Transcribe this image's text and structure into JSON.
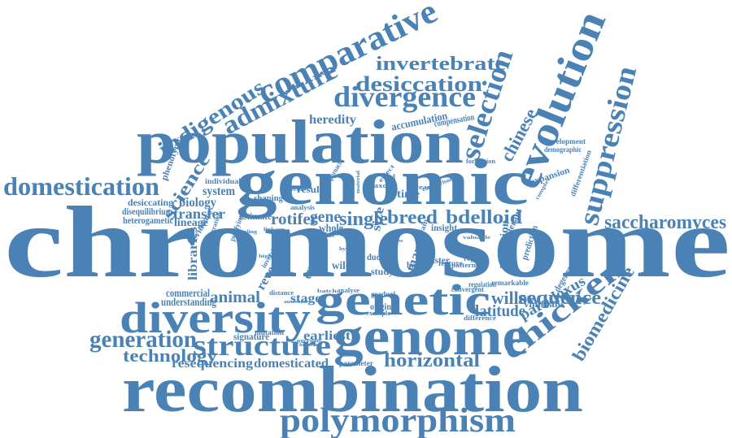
{
  "style": {
    "word_color": "#4a82b6",
    "background": "#ffffff"
  },
  "words": [
    "chromosome",
    "recombination",
    "genomic",
    "population",
    "genome",
    "genetic",
    "evolution",
    "diversity",
    "comparative",
    "polymorphism",
    "chicken",
    "suppression",
    "selection",
    "structure",
    "divergence",
    "admixture",
    "domestication",
    "generation",
    "indigenous",
    "desiccation",
    "invertebrate",
    "horizontal",
    "saccharomyces",
    "technology",
    "bdelloid",
    "biomedicine",
    "sequence",
    "chinese",
    "breed",
    "single",
    "science",
    "willow",
    "latitude",
    "paradoxus",
    "animal",
    "rotifer",
    "resequencing",
    "domesticated",
    "earliest",
    "heredity",
    "transfer",
    "biology",
    "system",
    "lineage",
    "libraries",
    "stage",
    "gene",
    "reveal",
    "commercial",
    "understanding",
    "signature",
    "heterogametic",
    "disequilibrium",
    "desiccating",
    "variation",
    "whole",
    "exception",
    "many",
    "time",
    "size",
    "accumulation",
    "compensation",
    "phenotypic",
    "differentiation",
    "expansion",
    "prediction",
    "tolerant",
    "viminalis",
    "degeneration",
    "evidence",
    "development",
    "demographic",
    "estimate",
    "result",
    "shaping",
    "individual",
    "insight",
    "mutation",
    "parameter",
    "homolog",
    "formation",
    "analysis",
    "convergent",
    "sister",
    "origin",
    "gradual",
    "study",
    "wild",
    "duck",
    "basket",
    "feature",
    "regulation",
    "remarkable",
    "difference",
    "example",
    "taxon",
    "yeast",
    "effect",
    "approach",
    "purifying",
    "migration",
    "inversion",
    "autosome",
    "distance",
    "analyse",
    "batch",
    "comparison",
    "strain",
    "region",
    "pattern",
    "valuable",
    "complex",
    "linkage",
    "genus",
    "molecule",
    "material",
    "common",
    "previous",
    "higher",
    "hybrid",
    "sampling",
    "flow"
  ]
}
